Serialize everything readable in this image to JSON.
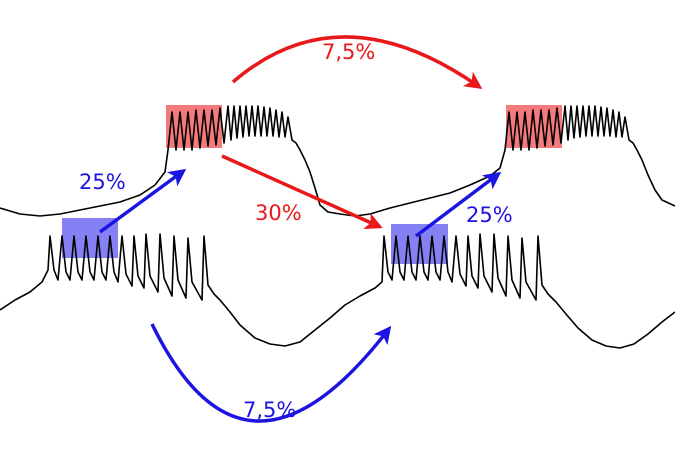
{
  "colors": {
    "red": "#e8181b",
    "blue": "#1c14e0",
    "red_box": "#f47a7c",
    "blue_box": "#8581f4",
    "trace": "#000000",
    "background": "#ffffff"
  },
  "labels": {
    "top_arc": "7,5%",
    "left_blue_arrow": "25%",
    "middle_red_arrow": "30%",
    "right_blue_arrow": "25%",
    "bottom_arc": "7,5%"
  }
}
